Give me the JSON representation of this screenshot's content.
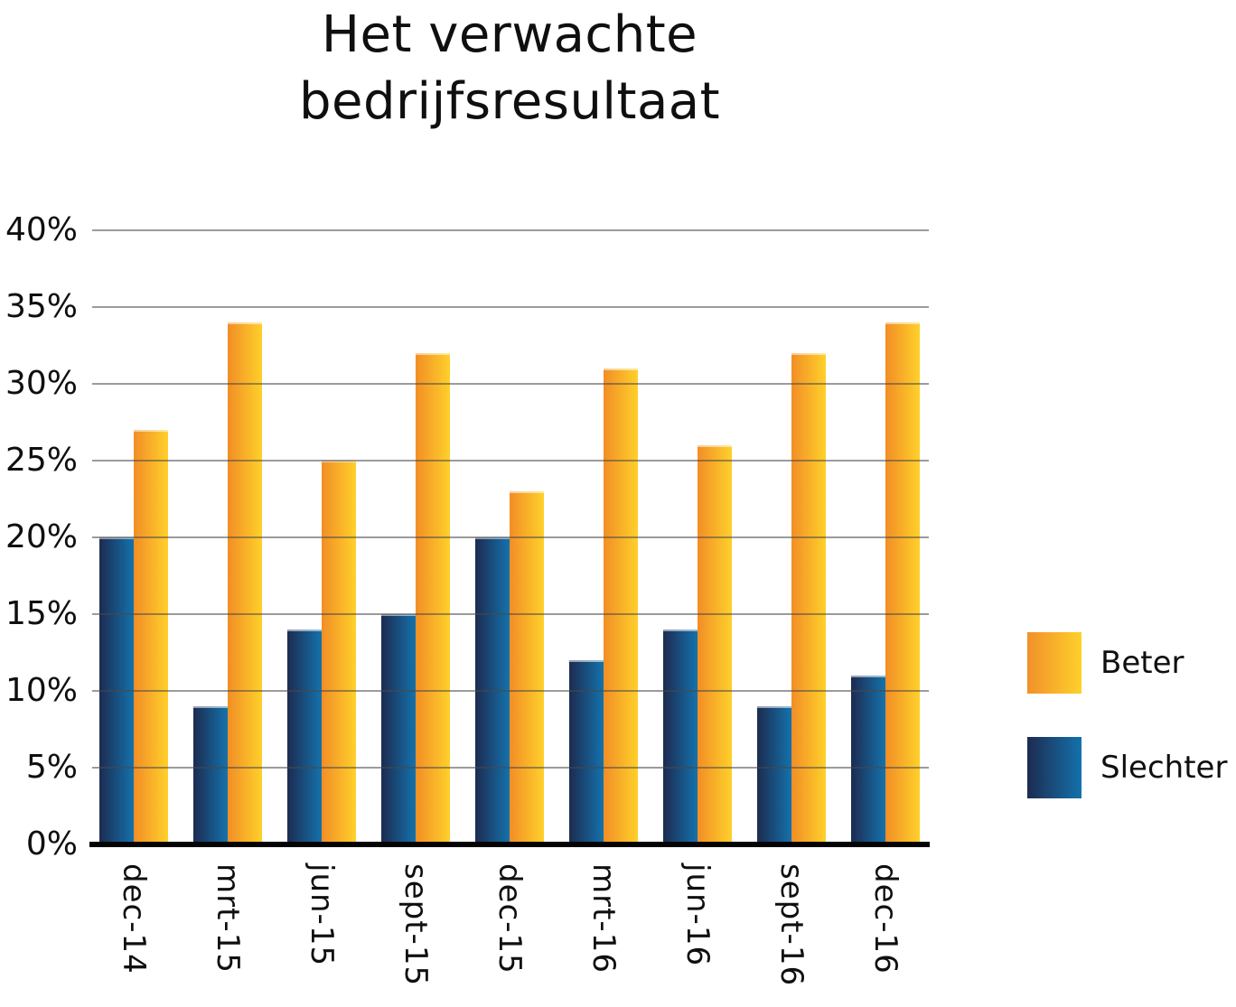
{
  "title": {
    "line1": "Het verwachte",
    "line2": "bedrijfsresultaat"
  },
  "chart_data": {
    "type": "bar",
    "title": "Het verwachte bedrijfsresultaat",
    "categories": [
      "dec-14",
      "mrt-15",
      "jun-15",
      "sept-15",
      "dec-15",
      "mrt-16",
      "jun-16",
      "sept-16",
      "dec-16"
    ],
    "series": [
      {
        "name": "Beter",
        "color_gradient": [
          "#F18E26",
          "#FFD02B"
        ],
        "values": [
          27,
          34,
          25,
          32,
          23,
          31,
          26,
          32,
          34
        ]
      },
      {
        "name": "Slechter",
        "color_gradient": [
          "#1D2B50",
          "#1472AC"
        ],
        "values": [
          20,
          9,
          14,
          15,
          20,
          12,
          14,
          9,
          11
        ]
      }
    ],
    "xlabel": "",
    "ylabel": "",
    "ylim": [
      0,
      40
    ],
    "y_ticks": [
      "40%",
      "35%",
      "30%",
      "25%",
      "20%",
      "15%",
      "10%",
      "5%",
      "0%"
    ],
    "grid": true,
    "legend_position": "right",
    "axis_color": "#000000",
    "gridline_color": "#8C8C8C",
    "background_color": "#FFFFFF"
  }
}
